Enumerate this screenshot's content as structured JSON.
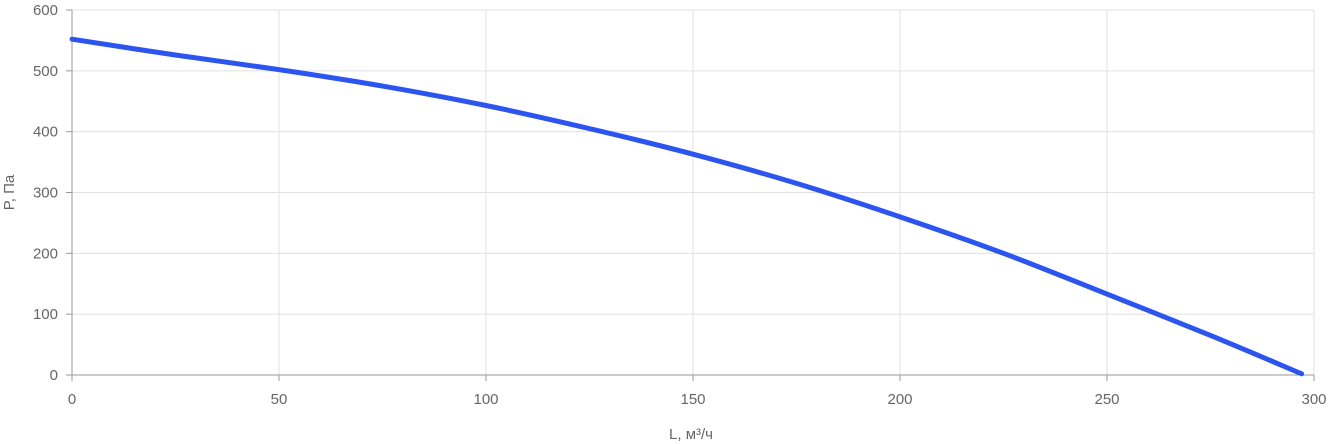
{
  "chart_data": {
    "type": "line",
    "xlabel": "L, м³/ч",
    "ylabel": "P, Па",
    "xlim": [
      0,
      300
    ],
    "ylim": [
      0,
      600
    ],
    "x_ticks": [
      0,
      50,
      100,
      150,
      200,
      250,
      300
    ],
    "y_ticks": [
      0,
      100,
      200,
      300,
      400,
      500,
      600
    ],
    "grid": true,
    "legend": "none",
    "series": [
      {
        "color": "#2c55f0",
        "x": [
          0,
          25,
          50,
          75,
          100,
          125,
          150,
          175,
          200,
          225,
          250,
          275,
          297
        ],
        "y": [
          552,
          526,
          502,
          475,
          443,
          405,
          363,
          315,
          260,
          200,
          133,
          65,
          2
        ]
      }
    ]
  }
}
